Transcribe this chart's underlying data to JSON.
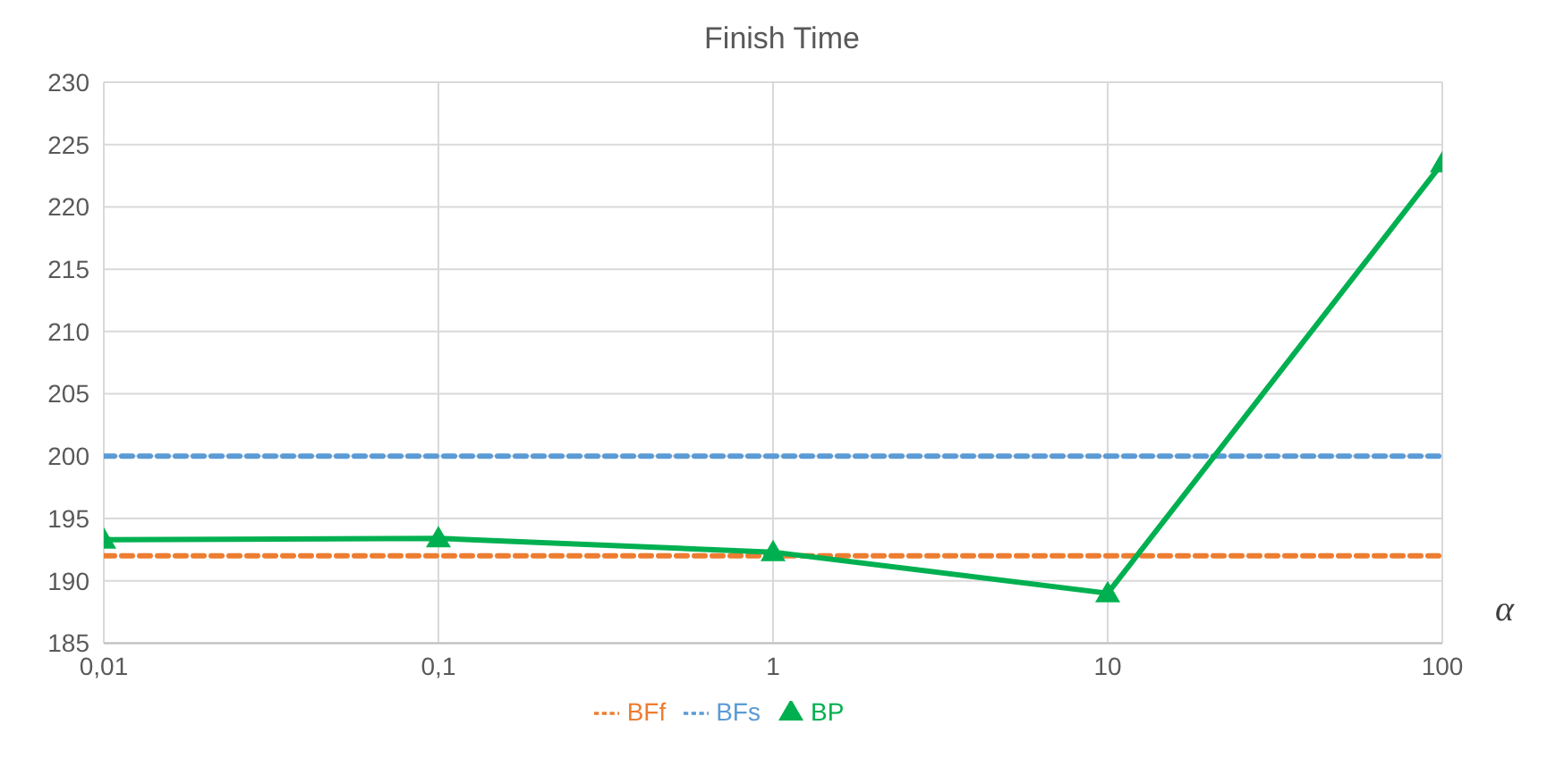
{
  "chart_data": {
    "type": "line",
    "title": "Finish Time",
    "xlabel": "α",
    "categories": [
      "0,01",
      "0,1",
      "1",
      "10",
      "100"
    ],
    "series": [
      {
        "name": "BFs",
        "color": "#5b9bd5",
        "line_style": "dashed",
        "marker": "none",
        "values": [
          200,
          200,
          200,
          200,
          200
        ]
      },
      {
        "name": "BFf",
        "color": "#ed7d31",
        "line_style": "dashed",
        "marker": "none",
        "values": [
          192,
          192,
          192,
          192,
          192
        ]
      },
      {
        "name": "BP",
        "color": "#00b050",
        "line_style": "solid",
        "marker": "triangle",
        "values": [
          193.3,
          193.4,
          192.3,
          189,
          223.5
        ]
      }
    ],
    "ylim": [
      185,
      230
    ],
    "yticks": [
      185,
      190,
      195,
      200,
      205,
      210,
      215,
      220,
      225,
      230
    ],
    "grid": true,
    "legend": "bottom"
  }
}
